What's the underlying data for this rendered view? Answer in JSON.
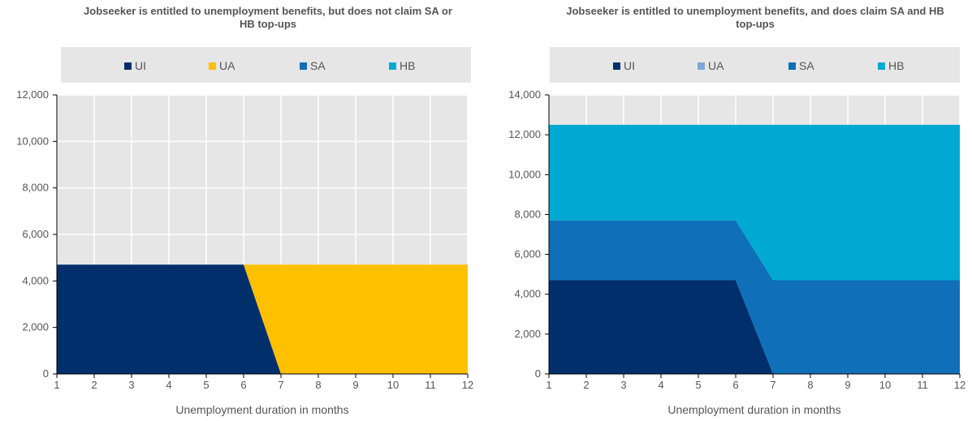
{
  "chart_data": [
    {
      "type": "area",
      "title": "Jobseeker is entitled to unemployment benefits, but does not claim SA or HB top-ups",
      "xlabel": "Unemployment duration in months",
      "ylabel": "",
      "x": [
        1,
        2,
        3,
        4,
        5,
        6,
        7,
        8,
        9,
        10,
        11,
        12
      ],
      "ylim": [
        0,
        12000
      ],
      "yticks": [
        "0",
        "2,000",
        "4,000",
        "6,000",
        "8,000",
        "10,000",
        "12,000"
      ],
      "stacked": true,
      "grid": true,
      "legend_position": "top",
      "legend": [
        {
          "name": "UI",
          "color": "#002f6c"
        },
        {
          "name": "UA",
          "color": "#ffc000"
        },
        {
          "name": "SA",
          "color": "#0f6fb8"
        },
        {
          "name": "HB",
          "color": "#00a9d1"
        }
      ],
      "series": [
        {
          "name": "UI",
          "color": "#002f6c",
          "values": [
            4700,
            4700,
            4700,
            4700,
            4700,
            4700,
            0,
            0,
            0,
            0,
            0,
            0
          ]
        },
        {
          "name": "UA",
          "color": "#ffc000",
          "values": [
            0,
            0,
            0,
            0,
            0,
            0,
            4700,
            4700,
            4700,
            4700,
            4700,
            4700
          ]
        },
        {
          "name": "SA",
          "color": "#0f6fb8",
          "values": [
            0,
            0,
            0,
            0,
            0,
            0,
            0,
            0,
            0,
            0,
            0,
            0
          ]
        },
        {
          "name": "HB",
          "color": "#00a9d1",
          "values": [
            0,
            0,
            0,
            0,
            0,
            0,
            0,
            0,
            0,
            0,
            0,
            0
          ]
        }
      ]
    },
    {
      "type": "area",
      "title": "Jobseeker is entitled to unemployment benefits, and does claim SA and HB top-ups",
      "xlabel": "Unemployment duration in months",
      "ylabel": "",
      "x": [
        1,
        2,
        3,
        4,
        5,
        6,
        7,
        8,
        9,
        10,
        11,
        12
      ],
      "ylim": [
        0,
        14000
      ],
      "yticks": [
        "0",
        "2,000",
        "4,000",
        "6,000",
        "8,000",
        "10,000",
        "12,000",
        "14,000"
      ],
      "stacked": true,
      "grid": true,
      "legend_position": "top",
      "legend": [
        {
          "name": "UI",
          "color": "#002f6c"
        },
        {
          "name": "UA",
          "color": "#7ea6d8"
        },
        {
          "name": "SA",
          "color": "#0f6fb8"
        },
        {
          "name": "HB",
          "color": "#00a9d1"
        }
      ],
      "series": [
        {
          "name": "UI",
          "color": "#002f6c",
          "values": [
            4700,
            4700,
            4700,
            4700,
            4700,
            4700,
            0,
            0,
            0,
            0,
            0,
            0
          ]
        },
        {
          "name": "UA",
          "color": "#7ea6d8",
          "values": [
            0,
            0,
            0,
            0,
            0,
            0,
            0,
            0,
            0,
            0,
            0,
            0
          ]
        },
        {
          "name": "SA",
          "color": "#0f6fb8",
          "values": [
            3000,
            3000,
            3000,
            3000,
            3000,
            3000,
            4700,
            4700,
            4700,
            4700,
            4700,
            4700
          ]
        },
        {
          "name": "HB",
          "color": "#00a9d1",
          "values": [
            4800,
            4800,
            4800,
            4800,
            4800,
            4800,
            7800,
            7800,
            7800,
            7800,
            7800,
            7800
          ]
        }
      ]
    }
  ]
}
